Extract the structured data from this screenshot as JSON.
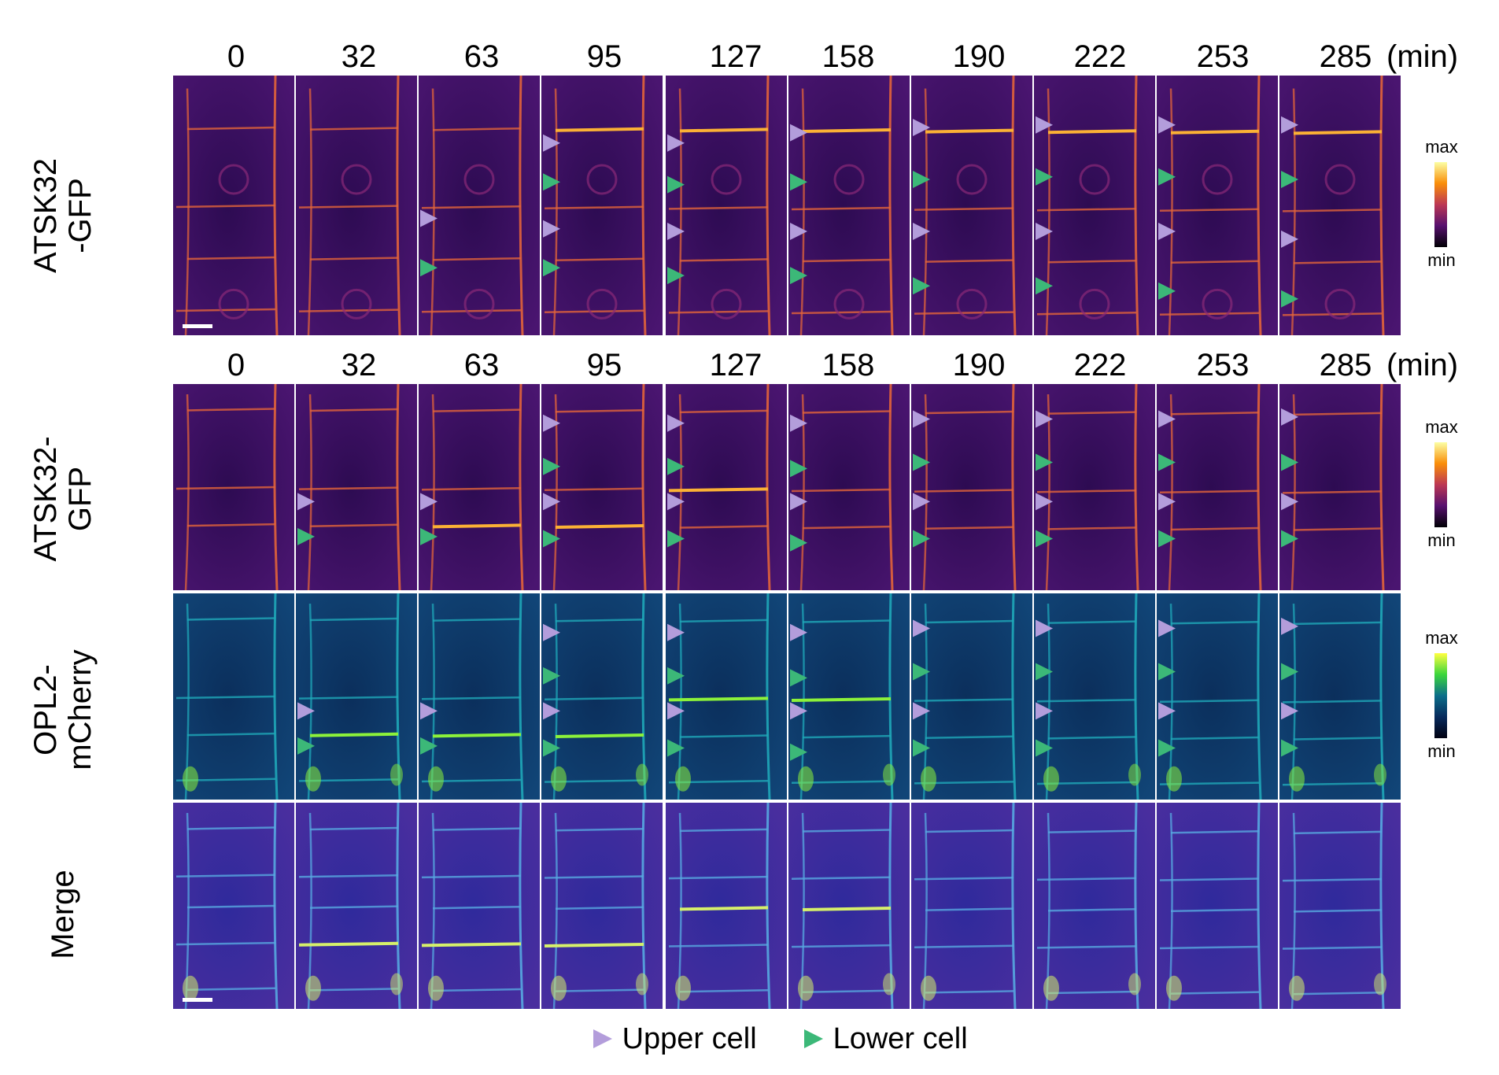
{
  "time_labels": [
    "0",
    "32",
    "63",
    "95",
    "127",
    "158",
    "190",
    "222",
    "253",
    "285"
  ],
  "time_unit": "(min)",
  "rows": [
    {
      "label_line1": "ATSK32",
      "label_line2": "-GFP",
      "colormap": "inferno"
    },
    {
      "label_line1": "ATSK32-",
      "label_line2": "GFP",
      "colormap": "inferno"
    },
    {
      "label_line1": "OPL2-",
      "label_line2": "mCherry",
      "colormap": "green"
    },
    {
      "label_line1": "Merge",
      "label_line2": "",
      "colormap": "merge"
    }
  ],
  "colorbars": [
    {
      "max_label": "max",
      "min_label": "min",
      "colormap": "inferno"
    },
    {
      "max_label": "max",
      "min_label": "min",
      "colormap": "inferno"
    },
    {
      "max_label": "max",
      "min_label": "min",
      "colormap": "green"
    }
  ],
  "legend": {
    "upper": {
      "label": "Upper cell",
      "color": "#b39ddb"
    },
    "lower": {
      "label": "Lower cell",
      "color": "#3cb878"
    }
  },
  "colors": {
    "upper_arrow": "#b39ddb",
    "lower_arrow": "#3cb878",
    "inferno_bg": "#3a0a5e",
    "green_bg": "#0d3f6e",
    "merge_bg": "#3a2fa8"
  }
}
